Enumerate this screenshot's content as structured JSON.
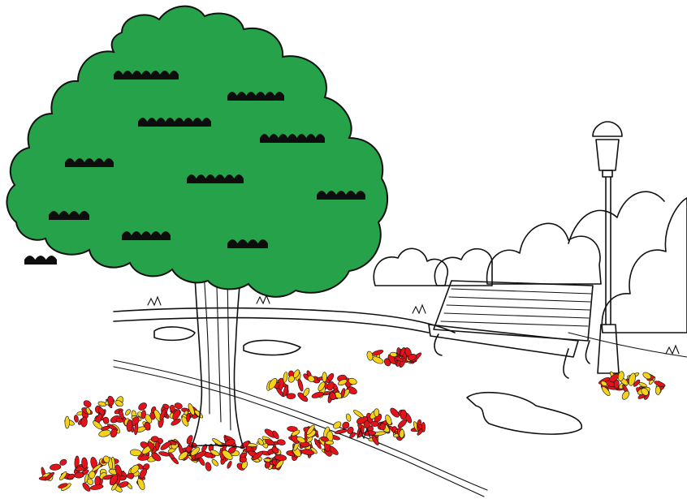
{
  "scene": {
    "colors": {
      "foliage": "#26a34a",
      "foliage_shadow": "#0d0d0d",
      "leaf_red": "#e3121b",
      "leaf_yellow": "#f5d21a",
      "line_ink": "#111111",
      "background": "#ffffff"
    },
    "icons": [
      "tree-icon",
      "park-bench-icon",
      "street-lamp-icon",
      "leaf-pile-icon",
      "puddle-icon",
      "bush-icon"
    ]
  }
}
